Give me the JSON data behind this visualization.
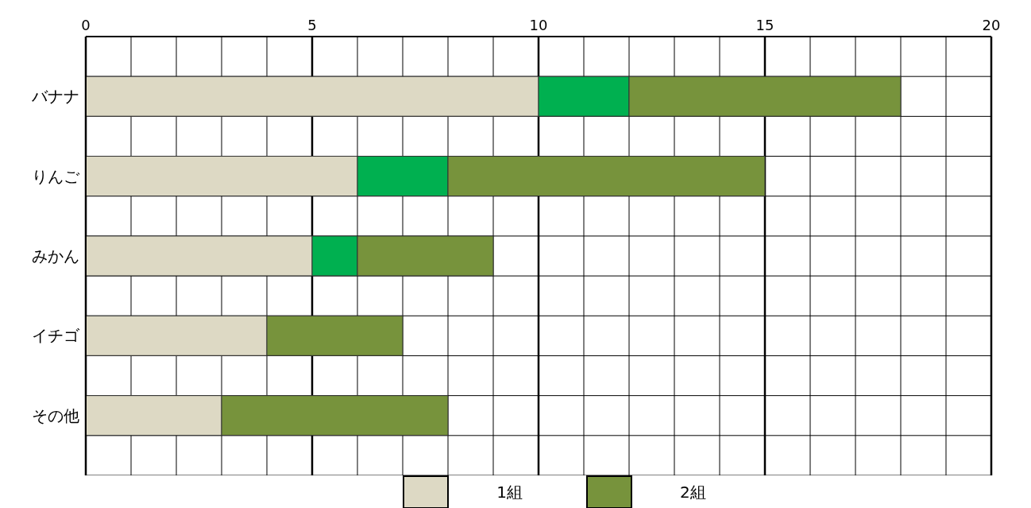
{
  "chart_data": {
    "type": "bar",
    "orientation": "horizontal",
    "stacked": true,
    "categories": [
      null,
      "バナナ",
      null,
      "りんご",
      null,
      "みかん",
      null,
      "イチゴ",
      null,
      "その他",
      null
    ],
    "series": [
      {
        "name": "1組",
        "color": "#ddd9c4",
        "values": [
          null,
          10,
          null,
          6,
          null,
          5,
          null,
          4,
          null,
          3,
          null
        ]
      },
      {
        "color": "#00b050",
        "values": [
          null,
          2,
          null,
          2,
          null,
          1,
          null,
          null,
          null,
          null,
          null
        ]
      },
      {
        "name": "2組",
        "color": "#77933c",
        "values": [
          null,
          6,
          null,
          7,
          null,
          3,
          null,
          3,
          null,
          5,
          null
        ]
      }
    ],
    "xlim": [
      0,
      20
    ],
    "xticks": [
      0,
      {
        "value": 1,
        "label": null
      },
      {
        "value": 2,
        "label": null
      },
      {
        "value": 3,
        "label": null
      },
      {
        "value": 4,
        "label": null
      },
      5,
      {
        "value": 6,
        "label": null
      },
      {
        "value": 7,
        "label": null
      },
      {
        "value": 8,
        "label": null
      },
      {
        "value": 9,
        "label": null
      },
      10,
      {
        "value": 11,
        "label": null
      },
      {
        "value": 12,
        "label": null
      },
      {
        "value": 13,
        "label": null
      },
      {
        "value": 14,
        "label": null
      },
      15,
      {
        "value": 16,
        "label": null
      },
      {
        "value": 17,
        "label": null
      },
      {
        "value": 18,
        "label": null
      },
      {
        "value": 19,
        "label": null
      },
      20
    ],
    "grid": true,
    "legend": "bottom"
  }
}
